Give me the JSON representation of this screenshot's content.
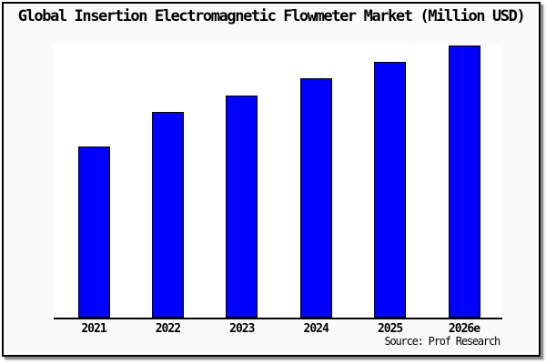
{
  "title": "Global Insertion Electromagnetic Flowmeter Market (Million USD)",
  "source": "Source: Prof Research",
  "colors": {
    "bar_fill": "#0000FF",
    "bar_border": "#000000",
    "card_bg": "#FAFAFA",
    "plot_bg": "#FFFFFF",
    "axis": "#000000",
    "text": "#000000",
    "shadow": "#8F8F8F"
  },
  "chart_data": {
    "type": "bar",
    "title": "Global Insertion Electromagnetic Flowmeter Market (Million USD)",
    "categories": [
      "2021",
      "2022",
      "2023",
      "2024",
      "2025",
      "2026e"
    ],
    "values": [
      63,
      75.5,
      81.5,
      88,
      94,
      100
    ],
    "xlabel": "",
    "ylabel": "",
    "ylim": [
      0,
      100
    ],
    "y_axis_shown": false,
    "gridlines": false,
    "legend_position": "none",
    "bar_color": "#0000FF",
    "note": "No y-axis scale is rendered in the image; values are relative bar heights normalized so the tallest bar (2026e) = 100."
  }
}
